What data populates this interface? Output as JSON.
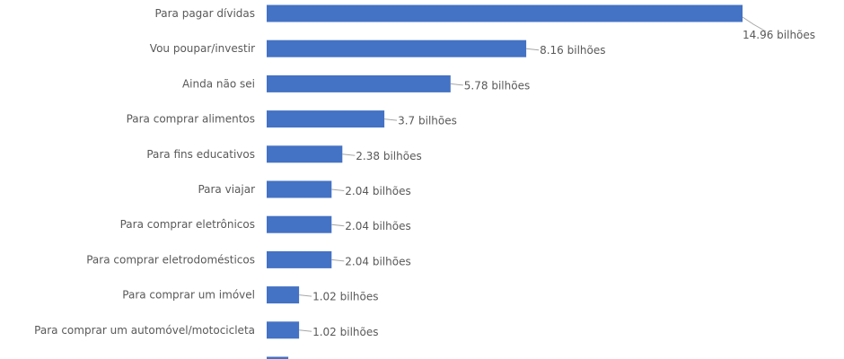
{
  "chart_data": {
    "type": "bar",
    "orientation": "horizontal",
    "unit_suffix": "bilhões",
    "bar_color": "#4472c4",
    "categories": [
      "Para pagar dívidas",
      "Vou poupar/investir",
      "Ainda não sei",
      "Para comprar alimentos",
      "Para fins educativos",
      "Para viajar",
      "Para comprar eletrônicos",
      "Para comprar eletrodomésticos",
      "Para comprar um imóvel",
      "Para comprar um automóvel/motocicleta",
      ""
    ],
    "values": [
      14.96,
      8.16,
      5.78,
      3.7,
      2.38,
      2.04,
      2.04,
      2.04,
      1.02,
      1.02,
      0.68
    ],
    "data_labels": [
      "14.96 bilhões",
      "8.16 bilhões",
      "5.78 bilhões",
      "3.7 bilhões",
      "2.38 bilhões",
      "2.04 bilhões",
      "2.04 bilhões",
      "2.04 bilhões",
      "1.02 bilhões",
      "1.02 bilhões",
      ""
    ],
    "xlim": [
      0,
      14.96
    ],
    "grid": false,
    "legend": "none"
  }
}
